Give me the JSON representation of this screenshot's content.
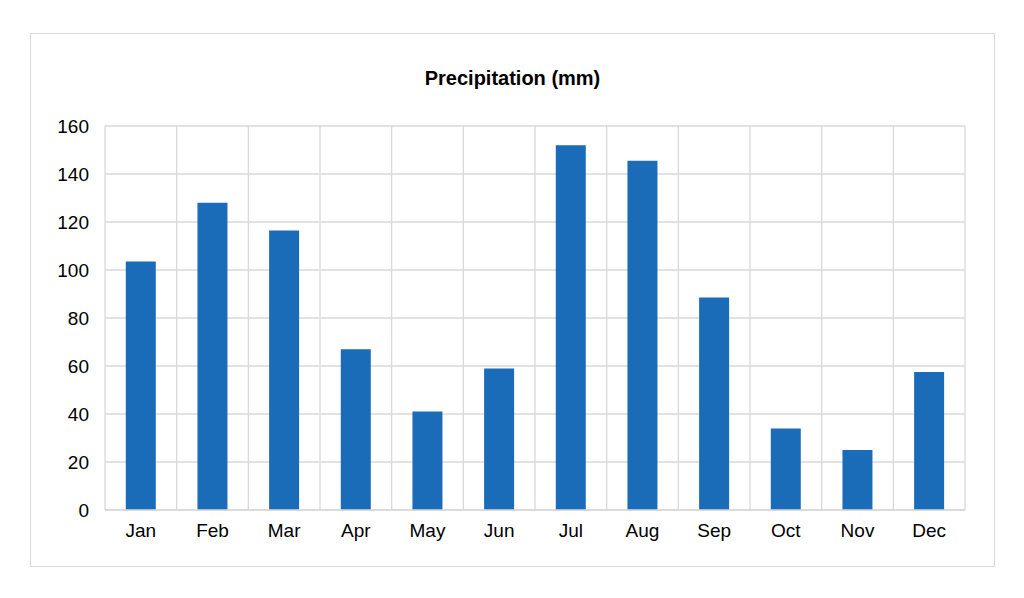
{
  "chart_data": {
    "type": "bar",
    "title": "Precipitation (mm)",
    "categories": [
      "Jan",
      "Feb",
      "Mar",
      "Apr",
      "May",
      "Jun",
      "Jul",
      "Aug",
      "Sep",
      "Oct",
      "Nov",
      "Dec"
    ],
    "values": [
      103.5,
      128,
      116.5,
      67,
      41,
      59,
      152,
      145.5,
      88.5,
      34,
      25,
      57.5
    ],
    "color": "#1a6bb8",
    "ylim": [
      0,
      160
    ],
    "yticks": [
      0,
      20,
      40,
      60,
      80,
      100,
      120,
      140,
      160
    ],
    "grid": true
  }
}
